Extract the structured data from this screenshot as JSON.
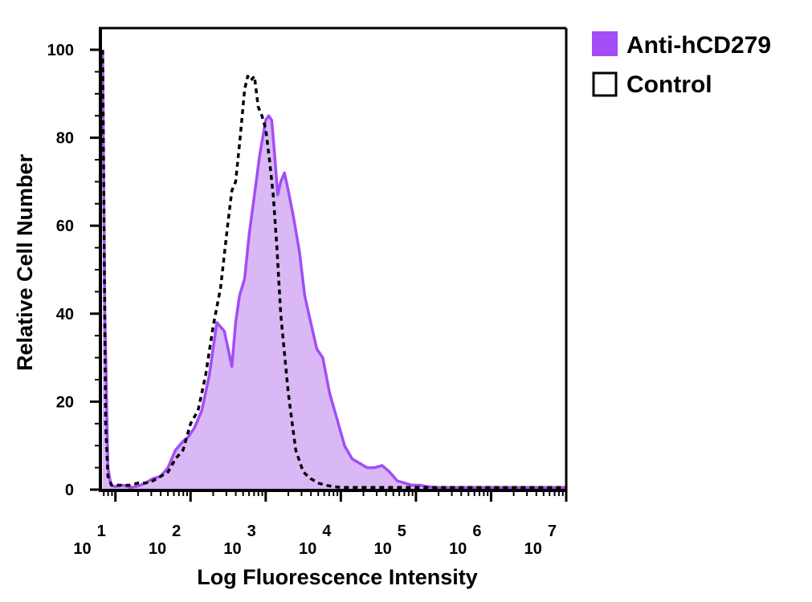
{
  "chart_data": {
    "type": "area",
    "title": "",
    "xlabel": "Log Fluorescence Intensity",
    "ylabel": "Relative Cell Number",
    "x_scale": "log10",
    "xlim_log10": [
      0.8,
      7.0
    ],
    "ylim": [
      0,
      105
    ],
    "x_ticks": [
      {
        "base": "10",
        "exp": "1",
        "log": 1
      },
      {
        "base": "10",
        "exp": "2",
        "log": 2
      },
      {
        "base": "10",
        "exp": "3",
        "log": 3
      },
      {
        "base": "10",
        "exp": "4",
        "log": 4
      },
      {
        "base": "10",
        "exp": "5",
        "log": 5
      },
      {
        "base": "10",
        "exp": "6",
        "log": 6
      },
      {
        "base": "10",
        "exp": "7",
        "log": 7
      }
    ],
    "y_ticks": [
      "0",
      "20",
      "40",
      "60",
      "80",
      "100"
    ],
    "y_tick_values": [
      0,
      20,
      40,
      60,
      80,
      100
    ],
    "legend": [
      {
        "label": "Anti-hCD279",
        "style": "filled",
        "color": "#a24df5"
      },
      {
        "label": "Control",
        "style": "outline-dashed",
        "color": "#000000"
      }
    ],
    "series": [
      {
        "name": "Anti-hCD279",
        "style": "filled",
        "color": "#a24df5",
        "fill": "#d9b8f5",
        "x_log10": [
          0.83,
          0.86,
          0.9,
          0.94,
          1.0,
          1.1,
          1.2,
          1.3,
          1.4,
          1.5,
          1.6,
          1.7,
          1.8,
          1.9,
          1.97,
          2.05,
          2.15,
          2.25,
          2.35,
          2.45,
          2.55,
          2.6,
          2.65,
          2.72,
          2.78,
          2.85,
          2.92,
          3.0,
          3.04,
          3.08,
          3.12,
          3.16,
          3.2,
          3.25,
          3.3,
          3.37,
          3.45,
          3.52,
          3.6,
          3.68,
          3.76,
          3.85,
          3.95,
          4.05,
          4.15,
          4.25,
          4.35,
          4.45,
          4.55,
          4.65,
          4.75,
          4.85,
          4.95,
          5.05,
          5.15,
          5.25,
          5.35,
          5.5,
          5.7,
          6.0,
          6.5,
          7.0
        ],
        "y": [
          100,
          40,
          5,
          1,
          0.7,
          1,
          0.5,
          0.8,
          1.5,
          2.5,
          3,
          5,
          9,
          11,
          12,
          14,
          18,
          26,
          38,
          36,
          28,
          38,
          44,
          48,
          58,
          67,
          76,
          84,
          85,
          84,
          76,
          67,
          70,
          72,
          68,
          62,
          54,
          44,
          38,
          32,
          30,
          22,
          16,
          10,
          7,
          6,
          5,
          5,
          5.5,
          4,
          2,
          1.5,
          1,
          1,
          0.7,
          0.5,
          0.5,
          0.5,
          0.5,
          0.5,
          0.5,
          0.5
        ]
      },
      {
        "name": "Control",
        "style": "dashed-outline",
        "color": "#000000",
        "x_log10": [
          0.83,
          0.87,
          0.9,
          0.95,
          1.0,
          1.1,
          1.2,
          1.3,
          1.4,
          1.5,
          1.6,
          1.7,
          1.8,
          1.9,
          2.0,
          2.1,
          2.2,
          2.3,
          2.4,
          2.5,
          2.55,
          2.6,
          2.66,
          2.72,
          2.76,
          2.8,
          2.85,
          2.9,
          2.95,
          3.0,
          3.05,
          3.1,
          3.15,
          3.2,
          3.3,
          3.4,
          3.5,
          3.6,
          3.7,
          3.8,
          3.9,
          4.0,
          4.2,
          4.5,
          5.0,
          6.0,
          7.0
        ],
        "y": [
          100,
          15,
          3,
          1,
          1,
          1,
          1,
          1.5,
          1.5,
          2,
          3,
          4,
          7,
          9,
          15,
          18,
          26,
          37,
          46,
          61,
          68,
          70,
          80,
          91,
          94,
          93,
          94,
          87,
          85,
          82,
          75,
          67,
          55,
          40,
          22,
          9,
          4,
          2.5,
          1.5,
          1,
          0.7,
          0.5,
          0.5,
          0.5,
          0.5,
          0.5,
          0.5
        ]
      }
    ]
  }
}
